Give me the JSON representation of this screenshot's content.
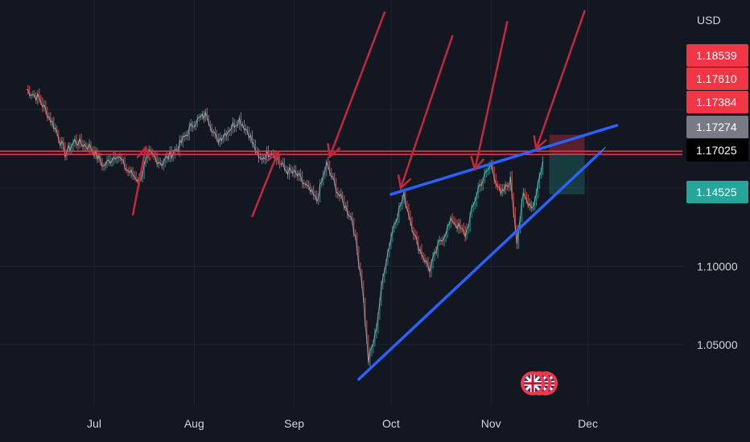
{
  "chart_data": {
    "type": "line",
    "instrument_quote_currency": "USD",
    "x_axis_labels": [
      "Jul",
      "Aug",
      "Sep",
      "Oct",
      "Nov",
      "Dec"
    ],
    "y_axis_ticks": [
      "1.05000",
      "1.10000"
    ],
    "ylim": [
      1.02,
      1.22
    ],
    "price_tags": [
      {
        "label": "1.18539",
        "color": "#f23645"
      },
      {
        "label": "1.17610",
        "color": "#f23645"
      },
      {
        "label": "1.17384",
        "color": "#f23645"
      },
      {
        "label": "1.17274",
        "color": "#787b86"
      },
      {
        "label": "1.17025",
        "color": "#000000"
      },
      {
        "label": "1.14525",
        "color": "#26a69a"
      }
    ],
    "horizontal_levels": [
      1.1735,
      1.1715
    ],
    "series": [
      {
        "values": [
          [
            "2025-06-10",
            1.213
          ],
          [
            "2025-06-14",
            1.207
          ],
          [
            "2025-06-19",
            1.188
          ],
          [
            "2025-06-22",
            1.172
          ],
          [
            "2025-06-25",
            1.18
          ],
          [
            "2025-06-30",
            1.176
          ],
          [
            "2025-07-04",
            1.164
          ],
          [
            "2025-07-08",
            1.172
          ],
          [
            "2025-07-11",
            1.162
          ],
          [
            "2025-07-15",
            1.155
          ],
          [
            "2025-07-18",
            1.172
          ],
          [
            "2025-07-22",
            1.166
          ],
          [
            "2025-07-27",
            1.176
          ],
          [
            "2025-08-01",
            1.192
          ],
          [
            "2025-08-05",
            1.197
          ],
          [
            "2025-08-08",
            1.18
          ],
          [
            "2025-08-12",
            1.188
          ],
          [
            "2025-08-15",
            1.194
          ],
          [
            "2025-08-18",
            1.185
          ],
          [
            "2025-08-21",
            1.168
          ],
          [
            "2025-08-25",
            1.174
          ],
          [
            "2025-08-29",
            1.162
          ],
          [
            "2025-09-02",
            1.158
          ],
          [
            "2025-09-05",
            1.15
          ],
          [
            "2025-09-08",
            1.142
          ],
          [
            "2025-09-11",
            1.165
          ],
          [
            "2025-09-15",
            1.145
          ],
          [
            "2025-09-19",
            1.13
          ],
          [
            "2025-09-22",
            1.09
          ],
          [
            "2025-09-24",
            1.04
          ],
          [
            "2025-09-26",
            1.055
          ],
          [
            "2025-09-29",
            1.1
          ],
          [
            "2025-10-02",
            1.128
          ],
          [
            "2025-10-05",
            1.145
          ],
          [
            "2025-10-09",
            1.115
          ],
          [
            "2025-10-13",
            1.098
          ],
          [
            "2025-10-16",
            1.115
          ],
          [
            "2025-10-20",
            1.13
          ],
          [
            "2025-10-24",
            1.12
          ],
          [
            "2025-10-28",
            1.15
          ],
          [
            "2025-11-01",
            1.165
          ],
          [
            "2025-11-04",
            1.145
          ],
          [
            "2025-11-07",
            1.155
          ],
          [
            "2025-11-09",
            1.117
          ],
          [
            "2025-11-11",
            1.145
          ],
          [
            "2025-11-14",
            1.138
          ],
          [
            "2025-11-17",
            1.167
          ]
        ]
      }
    ],
    "trendlines": [
      {
        "from": [
          "2025-10-01",
          1.146
        ],
        "to": [
          "2025-12-10",
          1.19
        ],
        "color": "#2962ff"
      },
      {
        "from": [
          "2025-09-21",
          1.028
        ],
        "to": [
          "2025-12-05",
          1.173
        ],
        "color": "#2962ff"
      }
    ],
    "position_box": {
      "x_range": [
        "2025-11-19",
        "2025-11-30"
      ],
      "stop_zone": [
        1.172,
        1.184
      ],
      "target_zone": [
        1.146,
        1.172
      ]
    },
    "arrows": [
      {
        "from": [
          "2025-07-13",
          1.133
        ],
        "to": [
          "2025-07-17",
          1.176
        ]
      },
      {
        "from": [
          "2025-08-19",
          1.132
        ],
        "to": [
          "2025-08-27",
          1.173
        ]
      },
      {
        "from": [
          "2025-09-29",
          1.262
        ],
        "to": [
          "2025-09-12",
          1.17
        ]
      },
      {
        "from": [
          "2025-10-20",
          1.247
        ],
        "to": [
          "2025-10-04",
          1.15
        ]
      },
      {
        "from": [
          "2025-11-06",
          1.256
        ],
        "to": [
          "2025-10-27",
          1.162
        ]
      },
      {
        "from": [
          "2025-11-30",
          1.263
        ],
        "to": [
          "2025-11-15",
          1.175
        ]
      }
    ],
    "annotations": [
      "uk-flag-icon"
    ]
  }
}
